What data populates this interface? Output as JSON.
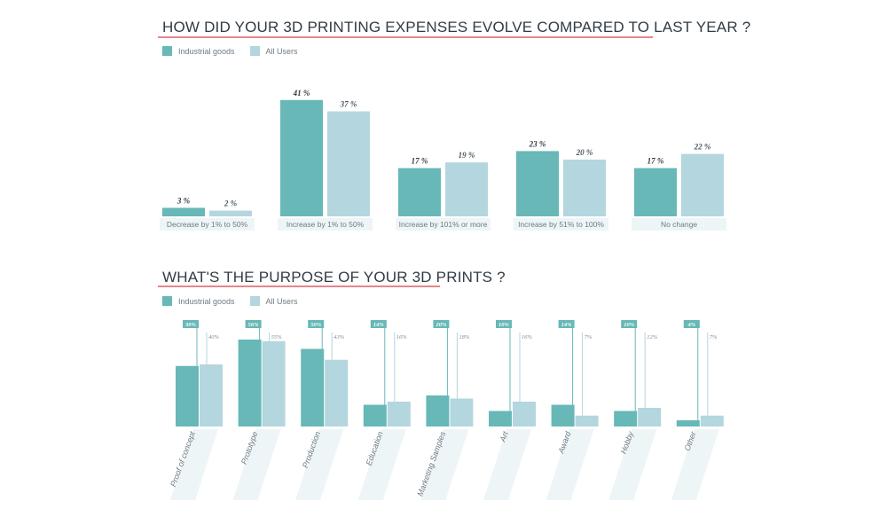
{
  "colors": {
    "industrial": "#67b8b7",
    "all_users": "#b4d6de",
    "category_bg": "#eef5f7",
    "title_underline": "#e5858c",
    "text_dark": "#2f3b45",
    "text_muted": "#6d7a84"
  },
  "chart_data": [
    {
      "type": "bar",
      "title": "HOW DID YOUR 3D PRINTING EXPENSES EVOLVE COMPARED TO LAST YEAR ?",
      "legend": [
        "Industrial goods",
        "All Users"
      ],
      "categories": [
        "Decrease by 1% to 50%",
        "Increase by 1% to 50%",
        "Increase by 101% or more",
        "Increase by 51% to 100%",
        "No change"
      ],
      "series": [
        {
          "name": "Industrial goods",
          "values": [
            3,
            41,
            17,
            23,
            17
          ],
          "labels": [
            "3 %",
            "41 %",
            "17 %",
            "23 %",
            "17 %"
          ]
        },
        {
          "name": "All Users",
          "values": [
            2,
            37,
            19,
            20,
            22
          ],
          "labels": [
            "2 %",
            "37 %",
            "19 %",
            "20 %",
            "22 %"
          ]
        }
      ],
      "ylim": [
        0,
        45
      ]
    },
    {
      "type": "bar",
      "title": "WHAT'S THE PURPOSE OF YOUR 3D PRINTS ?",
      "legend": [
        "Industrial goods",
        "All Users"
      ],
      "categories": [
        "Proof of concept",
        "Prototype",
        "Production",
        "Education",
        "Marketing Samples",
        "Art",
        "Award",
        "Hobby",
        "Other"
      ],
      "series": [
        {
          "name": "Industrial goods",
          "values": [
            39,
            56,
            50,
            14,
            20,
            10,
            14,
            10,
            4
          ],
          "labels": [
            "39%",
            "56%",
            "50%",
            "14%",
            "20%",
            "10%",
            "14%",
            "10%",
            "4%"
          ]
        },
        {
          "name": "All Users",
          "values": [
            40,
            55,
            43,
            16,
            18,
            16,
            7,
            12,
            7
          ],
          "labels": [
            "40%",
            "55%",
            "43%",
            "16%",
            "18%",
            "16%",
            "7%",
            "12%",
            "7%"
          ]
        }
      ],
      "ylim": [
        0,
        60
      ]
    }
  ]
}
